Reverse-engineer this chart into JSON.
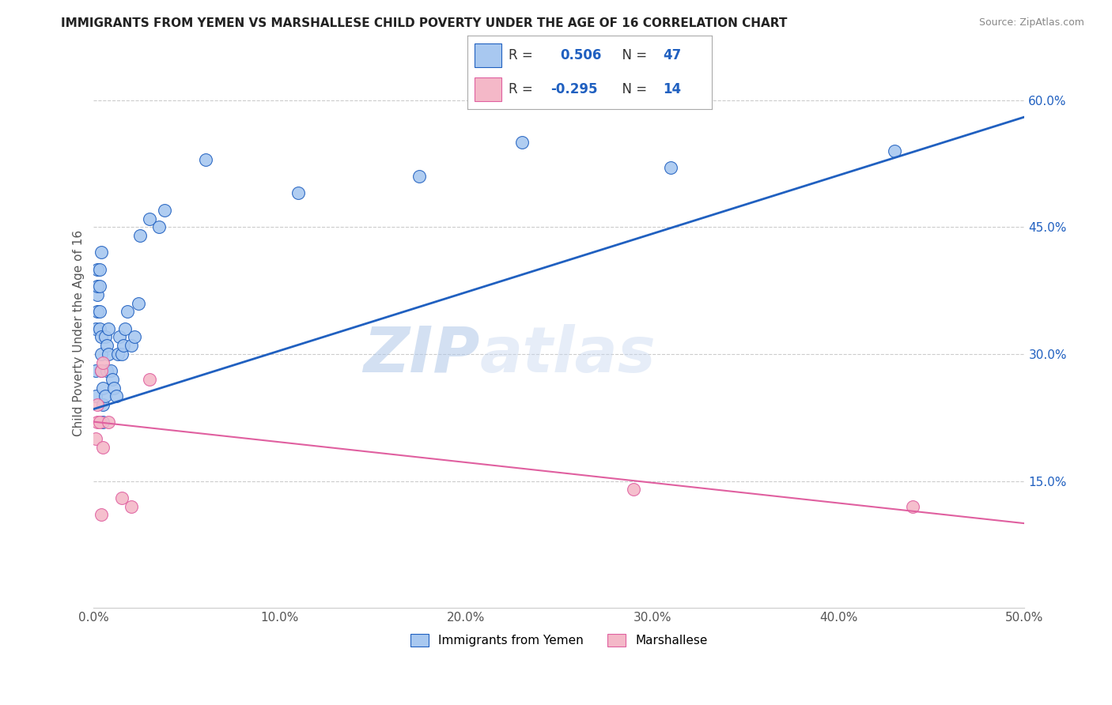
{
  "title": "IMMIGRANTS FROM YEMEN VS MARSHALLESE CHILD POVERTY UNDER THE AGE OF 16 CORRELATION CHART",
  "source": "Source: ZipAtlas.com",
  "ylabel": "Child Poverty Under the Age of 16",
  "xlim": [
    0.0,
    0.5
  ],
  "ylim": [
    0.0,
    0.65
  ],
  "xticks": [
    0.0,
    0.1,
    0.2,
    0.3,
    0.4,
    0.5
  ],
  "xticklabels": [
    "0.0%",
    "10.0%",
    "20.0%",
    "30.0%",
    "40.0%",
    "50.0%"
  ],
  "yticks": [
    0.15,
    0.3,
    0.45,
    0.6
  ],
  "yticklabels": [
    "15.0%",
    "30.0%",
    "45.0%",
    "60.0%"
  ],
  "blue_R": "0.506",
  "blue_N": "47",
  "pink_R": "-0.295",
  "pink_N": "14",
  "blue_color": "#a8c8f0",
  "pink_color": "#f4b8c8",
  "blue_line_color": "#2060c0",
  "pink_line_color": "#e060a0",
  "watermark_zip": "ZIP",
  "watermark_atlas": "atlas",
  "grid_color": "#cccccc",
  "legend_r_color": "#2060c0",
  "blue_x": [
    0.001,
    0.001,
    0.001,
    0.002,
    0.002,
    0.002,
    0.002,
    0.003,
    0.003,
    0.003,
    0.003,
    0.004,
    0.004,
    0.004,
    0.004,
    0.005,
    0.005,
    0.005,
    0.006,
    0.006,
    0.007,
    0.007,
    0.008,
    0.008,
    0.009,
    0.01,
    0.011,
    0.012,
    0.013,
    0.014,
    0.015,
    0.016,
    0.017,
    0.018,
    0.02,
    0.022,
    0.024,
    0.025,
    0.03,
    0.035,
    0.038,
    0.06,
    0.11,
    0.175,
    0.23,
    0.31,
    0.43
  ],
  "blue_y": [
    0.25,
    0.28,
    0.33,
    0.35,
    0.37,
    0.38,
    0.4,
    0.33,
    0.35,
    0.38,
    0.4,
    0.28,
    0.3,
    0.32,
    0.42,
    0.22,
    0.24,
    0.26,
    0.25,
    0.32,
    0.28,
    0.31,
    0.3,
    0.33,
    0.28,
    0.27,
    0.26,
    0.25,
    0.3,
    0.32,
    0.3,
    0.31,
    0.33,
    0.35,
    0.31,
    0.32,
    0.36,
    0.44,
    0.46,
    0.45,
    0.47,
    0.53,
    0.49,
    0.51,
    0.55,
    0.52,
    0.54
  ],
  "pink_x": [
    0.001,
    0.002,
    0.002,
    0.003,
    0.004,
    0.004,
    0.005,
    0.005,
    0.008,
    0.015,
    0.02,
    0.03,
    0.29,
    0.44
  ],
  "pink_y": [
    0.2,
    0.22,
    0.24,
    0.22,
    0.11,
    0.28,
    0.29,
    0.19,
    0.22,
    0.13,
    0.12,
    0.27,
    0.14,
    0.12
  ],
  "blue_trend_x": [
    0.0,
    0.5
  ],
  "blue_trend_y": [
    0.235,
    0.58
  ],
  "pink_trend_x": [
    0.0,
    0.5
  ],
  "pink_trend_y": [
    0.22,
    0.1
  ]
}
